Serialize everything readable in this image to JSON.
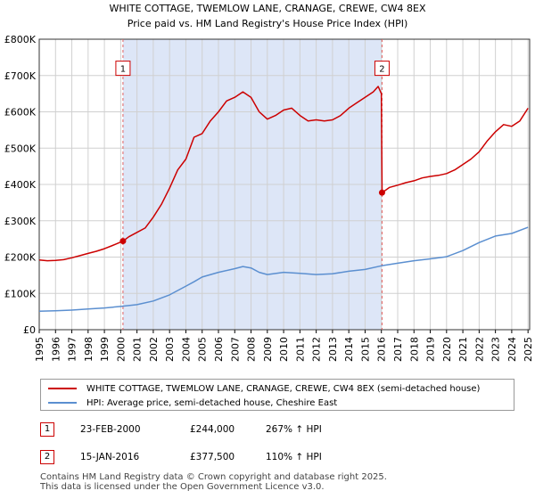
{
  "chart_data": {
    "type": "line",
    "title": "WHITE COTTAGE, TWEMLOW LANE, CRANAGE, CREWE, CW4 8EX",
    "subtitle": "Price paid vs. HM Land Registry's House Price Index (HPI)",
    "xlabel": "",
    "ylabel": "",
    "xlim": [
      1995,
      2025.1
    ],
    "ylim": [
      0,
      800000
    ],
    "y_ticks": [
      {
        "value": 0,
        "label": "£0"
      },
      {
        "value": 100000,
        "label": "£100K"
      },
      {
        "value": 200000,
        "label": "£200K"
      },
      {
        "value": 300000,
        "label": "£300K"
      },
      {
        "value": 400000,
        "label": "£400K"
      },
      {
        "value": 500000,
        "label": "£500K"
      },
      {
        "value": 600000,
        "label": "£600K"
      },
      {
        "value": 700000,
        "label": "£700K"
      },
      {
        "value": 800000,
        "label": "£800K"
      }
    ],
    "x_ticks": [
      "1995",
      "1996",
      "1997",
      "1998",
      "1999",
      "2000",
      "2001",
      "2002",
      "2003",
      "2004",
      "2005",
      "2006",
      "2007",
      "2008",
      "2009",
      "2010",
      "2011",
      "2012",
      "2013",
      "2014",
      "2015",
      "2016",
      "2017",
      "2018",
      "2019",
      "2020",
      "2021",
      "2022",
      "2023",
      "2024",
      "2025"
    ],
    "grid": true,
    "shaded_range": [
      2000.14,
      2016.04
    ],
    "series": [
      {
        "name": "WHITE COTTAGE, TWEMLOW LANE, CRANAGE, CREWE, CW4 8EX (semi-detached house)",
        "color": "#cc0000",
        "x": [
          1995.0,
          1995.5,
          1996.0,
          1996.5,
          1997.0,
          1997.5,
          1998.0,
          1998.5,
          1999.0,
          1999.5,
          2000.14,
          2000.5,
          2001.0,
          2001.5,
          2002.0,
          2002.5,
          2003.0,
          2003.5,
          2004.0,
          2004.5,
          2005.0,
          2005.5,
          2006.0,
          2006.5,
          2007.0,
          2007.5,
          2008.0,
          2008.5,
          2009.0,
          2009.5,
          2010.0,
          2010.5,
          2011.0,
          2011.5,
          2012.0,
          2012.5,
          2013.0,
          2013.5,
          2014.0,
          2014.5,
          2015.0,
          2015.5,
          2015.8,
          2016.0,
          2016.04,
          2016.5,
          2017.0,
          2017.5,
          2018.0,
          2018.5,
          2019.0,
          2019.5,
          2020.0,
          2020.5,
          2021.0,
          2021.5,
          2022.0,
          2022.5,
          2023.0,
          2023.5,
          2024.0,
          2024.5,
          2025.0
        ],
        "y": [
          192000,
          190000,
          191000,
          193000,
          198000,
          204000,
          210000,
          216000,
          223000,
          232000,
          244000,
          256000,
          268000,
          280000,
          310000,
          345000,
          390000,
          440000,
          470000,
          530000,
          540000,
          575000,
          600000,
          630000,
          640000,
          655000,
          640000,
          600000,
          580000,
          590000,
          605000,
          610000,
          590000,
          575000,
          578000,
          575000,
          578000,
          590000,
          610000,
          625000,
          640000,
          655000,
          670000,
          650000,
          377500,
          392000,
          398000,
          405000,
          410000,
          418000,
          422000,
          425000,
          430000,
          440000,
          455000,
          470000,
          490000,
          520000,
          545000,
          565000,
          560000,
          575000,
          610000
        ]
      },
      {
        "name": "HPI: Average price, semi-detached house, Cheshire East",
        "color": "#5b8fd0",
        "x": [
          1995.0,
          1996.0,
          1997.0,
          1998.0,
          1999.0,
          2000.0,
          2001.0,
          2002.0,
          2003.0,
          2004.0,
          2004.5,
          2005.0,
          2006.0,
          2007.0,
          2007.5,
          2008.0,
          2008.5,
          2009.0,
          2010.0,
          2011.0,
          2012.0,
          2013.0,
          2014.0,
          2015.0,
          2016.0,
          2017.0,
          2018.0,
          2019.0,
          2020.0,
          2021.0,
          2022.0,
          2023.0,
          2024.0,
          2025.0
        ],
        "y": [
          51000,
          52000,
          54000,
          57000,
          60000,
          64000,
          69000,
          79000,
          96000,
          120000,
          132000,
          145000,
          158000,
          168000,
          174000,
          170000,
          158000,
          152000,
          158000,
          155000,
          152000,
          154000,
          161000,
          166000,
          176000,
          183000,
          190000,
          195000,
          201000,
          218000,
          240000,
          258000,
          265000,
          282000
        ]
      }
    ],
    "sales": [
      {
        "id": "1",
        "x": 2000.14,
        "y": 244000,
        "date": "23-FEB-2000",
        "price": "£244,000",
        "hpi": "267% ↑ HPI"
      },
      {
        "id": "2",
        "x": 2016.04,
        "y": 377500,
        "date": "15-JAN-2016",
        "price": "£377,500",
        "hpi": "110% ↑ HPI"
      }
    ],
    "annotation_label_value": 720000,
    "colors": {
      "shade": "#dde6f7",
      "grid": "#d0d0d0",
      "dashed": "#e06060"
    }
  },
  "footer": {
    "line1": "Contains HM Land Registry data © Crown copyright and database right 2025.",
    "line2": "This data is licensed under the Open Government Licence v3.0."
  }
}
